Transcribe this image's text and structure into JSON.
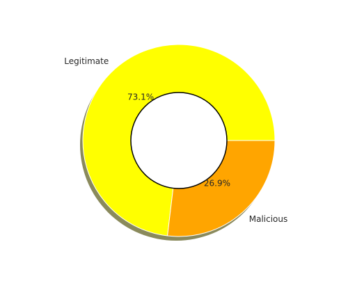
{
  "chart_data": {
    "type": "pie",
    "variant": "donut",
    "title": "",
    "slices": [
      {
        "label": "Legitimate",
        "value": 73.1,
        "pct_label": "73.1%",
        "color": "#FFFF00"
      },
      {
        "label": "Malicious",
        "value": 26.9,
        "pct_label": "26.9%",
        "color": "#FFA500"
      }
    ],
    "start_angle_deg": 0,
    "direction": "counterclockwise",
    "shadow": true,
    "shadow_color": "#8a8a5c",
    "center_hole_color": "#FFFFFF",
    "center_hole_border_color": "#000000",
    "legend": false
  }
}
